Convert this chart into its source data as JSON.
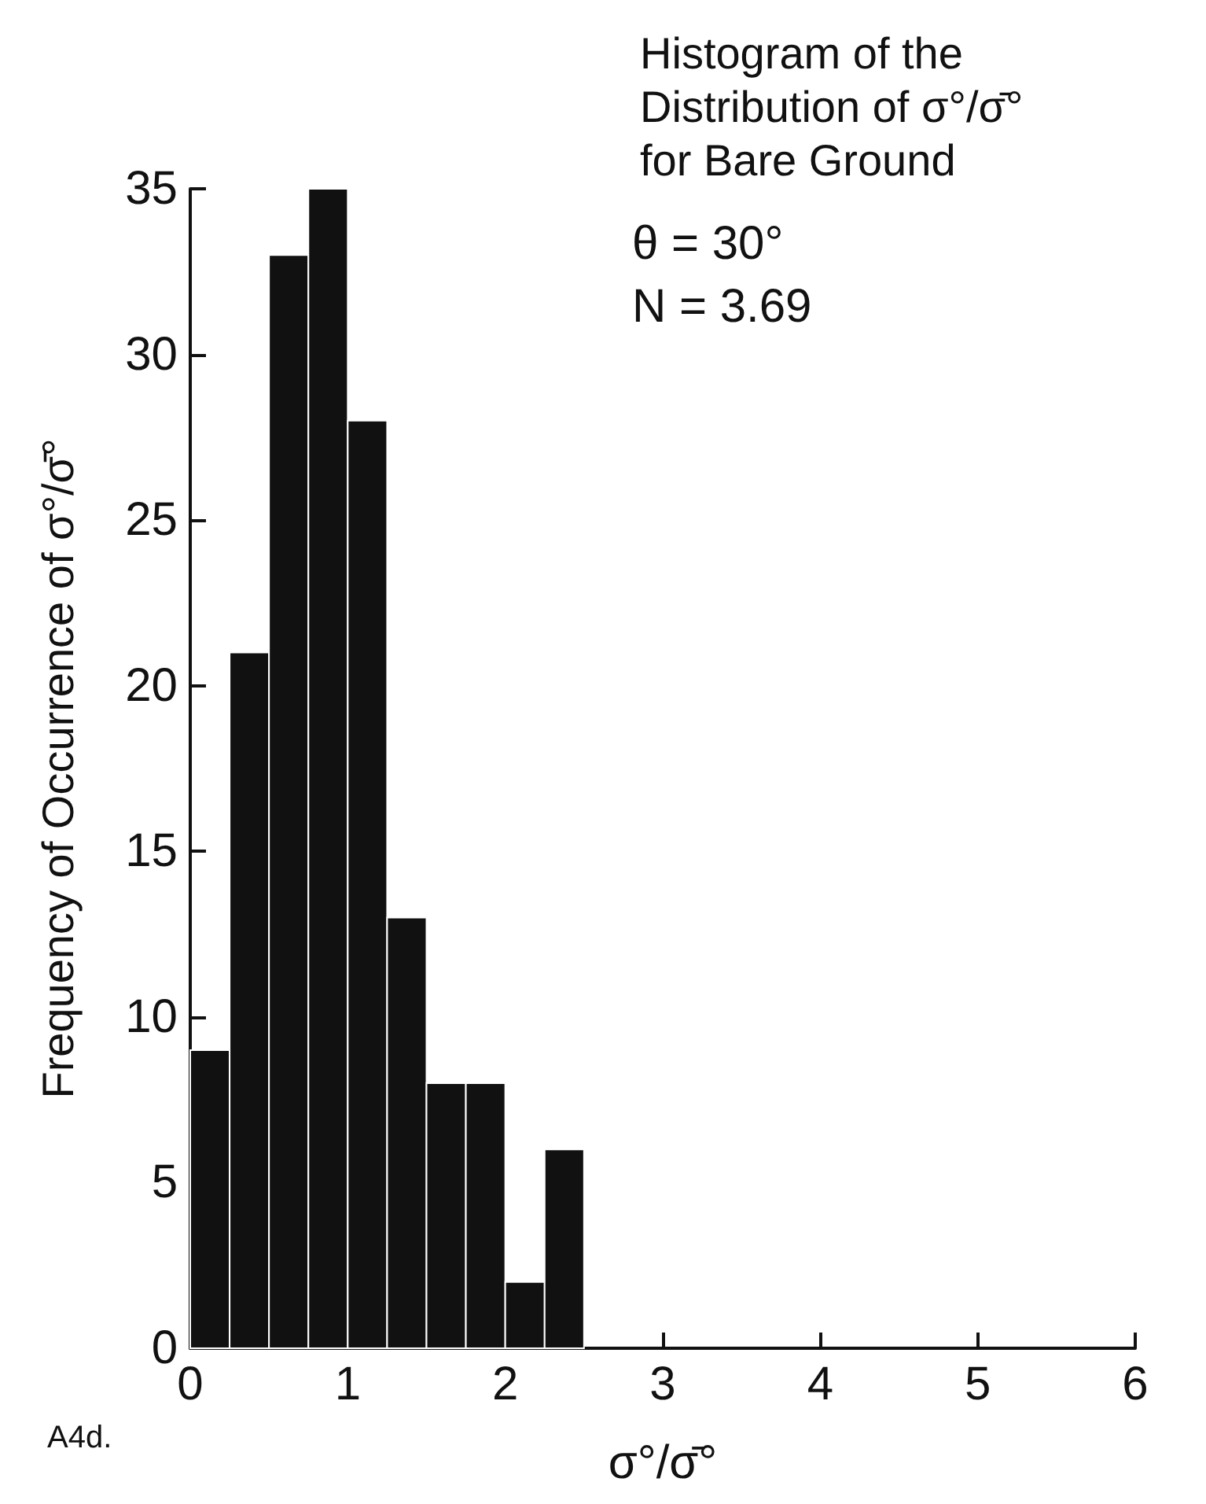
{
  "chart_data": {
    "type": "histogram",
    "title": "Histogram of the\nDistribution of σ°/σ̄°\nfor Bare Ground",
    "xlabel": "σ°/σ̄°",
    "ylabel": "Frequency of Occurrence of σ°/σ̄°",
    "bins": [
      0,
      0.25,
      0.5,
      0.75,
      1,
      1.25,
      1.5,
      1.75,
      2,
      2.25,
      2.5
    ],
    "values": [
      9,
      21,
      33,
      35,
      28,
      13,
      8,
      8,
      2,
      6
    ],
    "color": "#111111",
    "xlim": [
      0,
      6
    ],
    "xticks": [
      0,
      1,
      2,
      3,
      4,
      5,
      6
    ],
    "ylim": [
      0,
      35
    ],
    "yticks": [
      0,
      5,
      10,
      15,
      20,
      25,
      30,
      35
    ],
    "grid": false,
    "annotations": [
      "θ = 30°",
      "N = 3.69",
      "A4d."
    ]
  }
}
